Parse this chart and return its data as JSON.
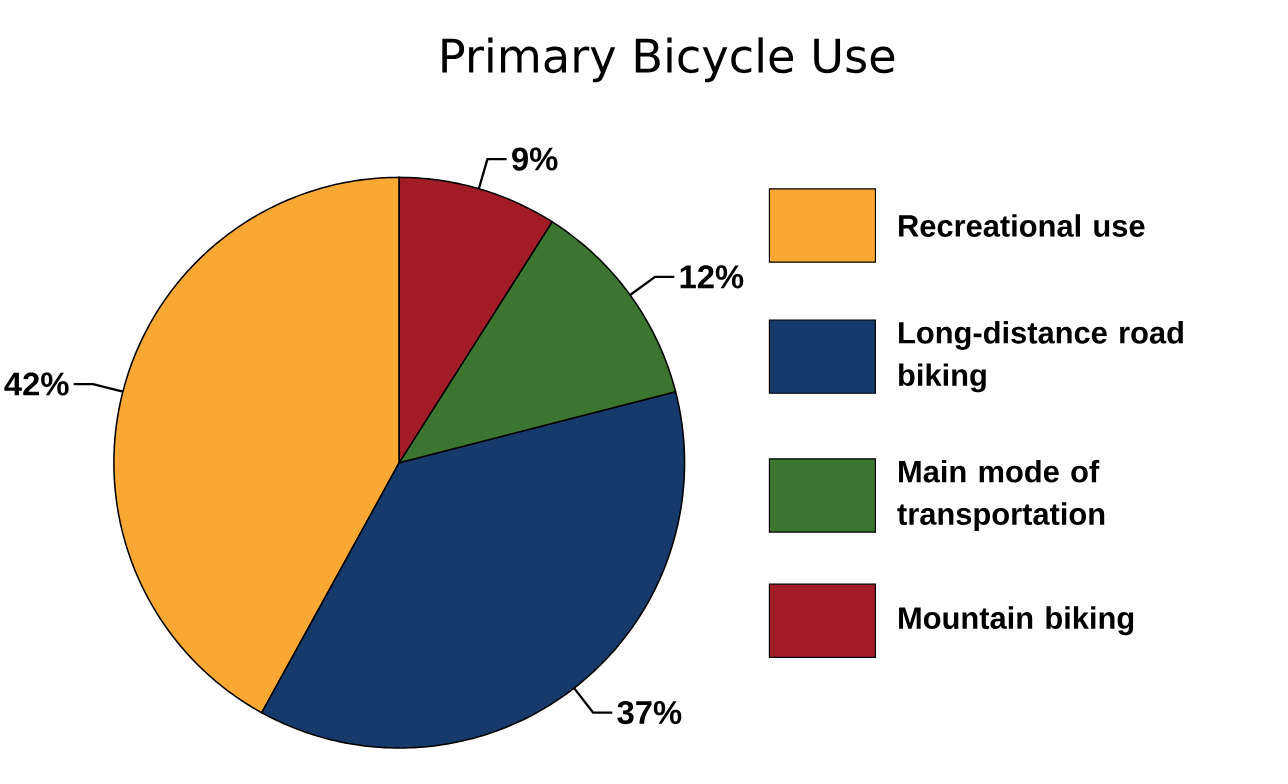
{
  "chart_data": {
    "type": "pie",
    "title": "Primary Bicycle Use",
    "categories": [
      "Recreational use",
      "Long-distance road biking",
      "Main mode of transportation",
      "Mountain biking"
    ],
    "values": [
      42,
      37,
      12,
      9
    ],
    "value_labels": [
      "42%",
      "37%",
      "12%",
      "9%"
    ],
    "colors": [
      "#f9a933",
      "#163a6b",
      "#3b7530",
      "#a21c25"
    ],
    "legend": "right"
  }
}
